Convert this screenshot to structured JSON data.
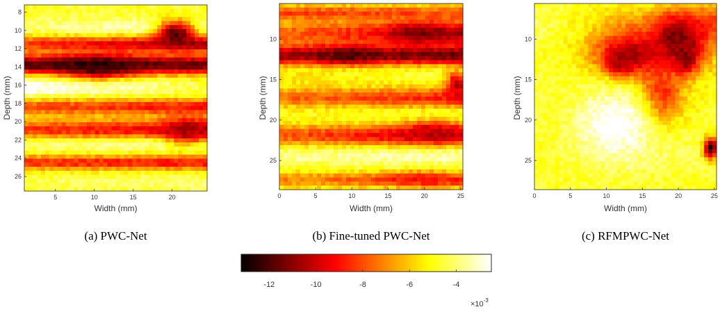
{
  "chart_data": [
    {
      "type": "heatmap",
      "caption": "(a) PWC-Net",
      "xlabel": "Width (mm)",
      "ylabel": "Depth (mm)",
      "xlim": [
        1,
        24.5
      ],
      "ylim": [
        7.2,
        27.6
      ],
      "xticks": [
        5,
        10,
        15,
        20
      ],
      "yticks": [
        8,
        10,
        12,
        14,
        16,
        18,
        20,
        22,
        24,
        26
      ],
      "colormap": "hot",
      "clim": [
        -0.0132,
        -0.0025
      ],
      "bands": [
        {
          "depth": 9.8,
          "width": 1.2,
          "value": -0.0034,
          "slope": 4e-05
        },
        {
          "depth": 11.5,
          "width": 0.9,
          "value": -0.0095,
          "slope": -0.0001
        },
        {
          "depth": 13.8,
          "width": 1.1,
          "value": -0.0118,
          "slope": 2e-05
        },
        {
          "depth": 16.3,
          "width": 1.1,
          "value": -0.0033,
          "slope": -0.0001
        },
        {
          "depth": 18.4,
          "width": 0.9,
          "value": -0.0085,
          "slope": -5e-05
        },
        {
          "depth": 21.0,
          "width": 1.2,
          "value": -0.0092,
          "slope": -6e-05
        },
        {
          "depth": 22.6,
          "width": 0.9,
          "value": -0.0038,
          "slope": 3e-05
        },
        {
          "depth": 24.5,
          "width": 0.8,
          "value": -0.0088,
          "slope": -2e-05
        },
        {
          "depth": 26.7,
          "width": 0.9,
          "value": -0.0042,
          "slope": 2e-05
        }
      ],
      "blobs": [
        {
          "x": 20.5,
          "y": 10.3,
          "rx": 2.5,
          "ry": 1.4,
          "value": -0.0121
        },
        {
          "x": 10.5,
          "y": 14.0,
          "rx": 4.5,
          "ry": 1.2,
          "value": -0.0125
        },
        {
          "x": 22.0,
          "y": 21.0,
          "rx": 3.0,
          "ry": 1.5,
          "value": -0.0105
        }
      ]
    },
    {
      "type": "heatmap",
      "caption": "(b) Fine-tuned PWC-Net",
      "xlabel": "Width (mm)",
      "ylabel": "Depth (mm)",
      "xlim": [
        0,
        25.3
      ],
      "ylim": [
        5.6,
        28.6
      ],
      "xticks": [
        0,
        5,
        10,
        15,
        20,
        25
      ],
      "yticks": [
        10,
        15,
        20,
        25
      ],
      "colormap": "hot",
      "clim": [
        -0.0132,
        -0.0025
      ],
      "bands": [
        {
          "depth": 6.8,
          "width": 1.0,
          "value": -0.008,
          "slope": 2e-05
        },
        {
          "depth": 9.3,
          "width": 1.5,
          "value": -0.009,
          "slope": -0.00012
        },
        {
          "depth": 12.0,
          "width": 1.3,
          "value": -0.0112,
          "slope": -3e-05
        },
        {
          "depth": 14.6,
          "width": 1.1,
          "value": -0.005,
          "slope": 5e-05
        },
        {
          "depth": 17.3,
          "width": 1.3,
          "value": -0.0082,
          "slope": -6e-05
        },
        {
          "depth": 19.6,
          "width": 1.0,
          "value": -0.0048,
          "slope": 2e-05
        },
        {
          "depth": 21.9,
          "width": 1.3,
          "value": -0.009,
          "slope": -0.0001
        },
        {
          "depth": 24.5,
          "width": 1.0,
          "value": -0.0035,
          "slope": 2e-05
        },
        {
          "depth": 27.4,
          "width": 0.9,
          "value": -0.0078,
          "slope": -6e-05
        }
      ],
      "blobs": [
        {
          "x": 19.5,
          "y": 9.3,
          "rx": 4.0,
          "ry": 1.3,
          "value": -0.0112
        },
        {
          "x": 9.5,
          "y": 12.0,
          "rx": 4.0,
          "ry": 1.0,
          "value": -0.0118
        },
        {
          "x": 24.5,
          "y": 15.5,
          "rx": 1.5,
          "ry": 1.5,
          "value": -0.0105
        },
        {
          "x": 21.0,
          "y": 21.5,
          "rx": 4.0,
          "ry": 1.3,
          "value": -0.0102
        },
        {
          "x": 19.5,
          "y": 27.3,
          "rx": 4.5,
          "ry": 0.8,
          "value": -0.0092
        }
      ]
    },
    {
      "type": "heatmap",
      "caption": "(c) RFMPWC-Net",
      "xlabel": "Width (mm)",
      "ylabel": "Depth (mm)",
      "xlim": [
        0,
        25.3
      ],
      "ylim": [
        5.6,
        28.6
      ],
      "xticks": [
        0,
        5,
        10,
        15,
        20,
        25
      ],
      "yticks": [
        10,
        15,
        20,
        25
      ],
      "colormap": "hot",
      "clim": [
        -0.0132,
        -0.0025
      ],
      "bands": [
        {
          "depth": 8.0,
          "width": 2.0,
          "value": -0.006,
          "slope": -0.00015
        },
        {
          "depth": 24.0,
          "width": 2.5,
          "value": -0.0045,
          "slope": 3e-05
        }
      ],
      "blobs": [
        {
          "x": 12.0,
          "y": 13.0,
          "rx": 1.6,
          "ry": 1.3,
          "value": -0.0132
        },
        {
          "x": 19.5,
          "y": 10.0,
          "rx": 1.8,
          "ry": 1.5,
          "value": -0.0134
        },
        {
          "x": 21.0,
          "y": 12.5,
          "rx": 1.3,
          "ry": 1.5,
          "value": -0.0125
        },
        {
          "x": 13.5,
          "y": 12.0,
          "rx": 5.5,
          "ry": 3.0,
          "value": -0.0108
        },
        {
          "x": 20.5,
          "y": 10.5,
          "rx": 4.0,
          "ry": 3.5,
          "value": -0.011
        },
        {
          "x": 17.5,
          "y": 17.0,
          "rx": 3.0,
          "ry": 3.5,
          "value": -0.0092
        },
        {
          "x": 11.0,
          "y": 20.5,
          "rx": 5.5,
          "ry": 4.5,
          "value": -0.0022
        },
        {
          "x": 3.0,
          "y": 16.0,
          "rx": 3.5,
          "ry": 3.0,
          "value": -0.0046
        },
        {
          "x": 24.5,
          "y": 23.5,
          "rx": 1.0,
          "ry": 1.3,
          "value": -0.0128
        }
      ]
    }
  ],
  "colorbar": {
    "ticks": [
      -12,
      -10,
      -8,
      -6,
      -4
    ],
    "tick_labels": [
      "-12",
      "-10",
      "-8",
      "-6",
      "-4"
    ],
    "multiplier_base": "×10",
    "multiplier_exponent": "-3",
    "range": [
      -13.2,
      -2.5
    ]
  }
}
